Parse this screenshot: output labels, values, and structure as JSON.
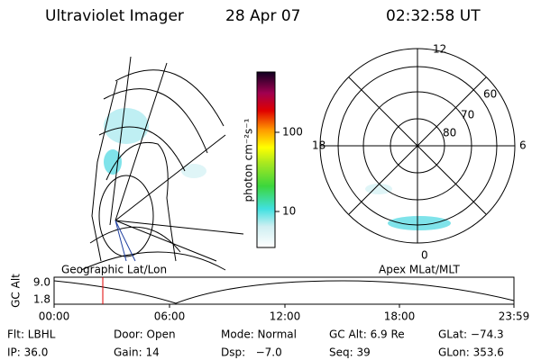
{
  "header": {
    "instrument": "Ultraviolet Imager",
    "date": "28 Apr 07",
    "time": "02:32:58 UT"
  },
  "colorbar": {
    "label": "photon cm⁻²s⁻¹",
    "ticks": [
      "100",
      "10"
    ]
  },
  "polar": {
    "hours": {
      "top": "12",
      "left": "18",
      "right": "6",
      "bottom": "0"
    },
    "rings": [
      "60",
      "70",
      "80"
    ]
  },
  "timeline": {
    "left_title": "Geographic Lat/Lon",
    "right_title": "Apex MLat/MLT",
    "y_label": "GC Alt",
    "y_ticks": [
      "9.0",
      "1.8"
    ],
    "x_ticks": [
      "00:00",
      "06:00",
      "12:00",
      "18:00",
      "23:59"
    ]
  },
  "footer": {
    "rows": [
      [
        "Flt: LBHL",
        "Door: Open",
        "Mode: Normal",
        "GC Alt: 6.9 Re",
        "GLat: −74.3"
      ],
      [
        "IP: 36.0",
        "Gain: 14",
        "Dsp:   −7.0",
        "Seq: 39",
        "GLon: 353.6"
      ]
    ]
  }
}
